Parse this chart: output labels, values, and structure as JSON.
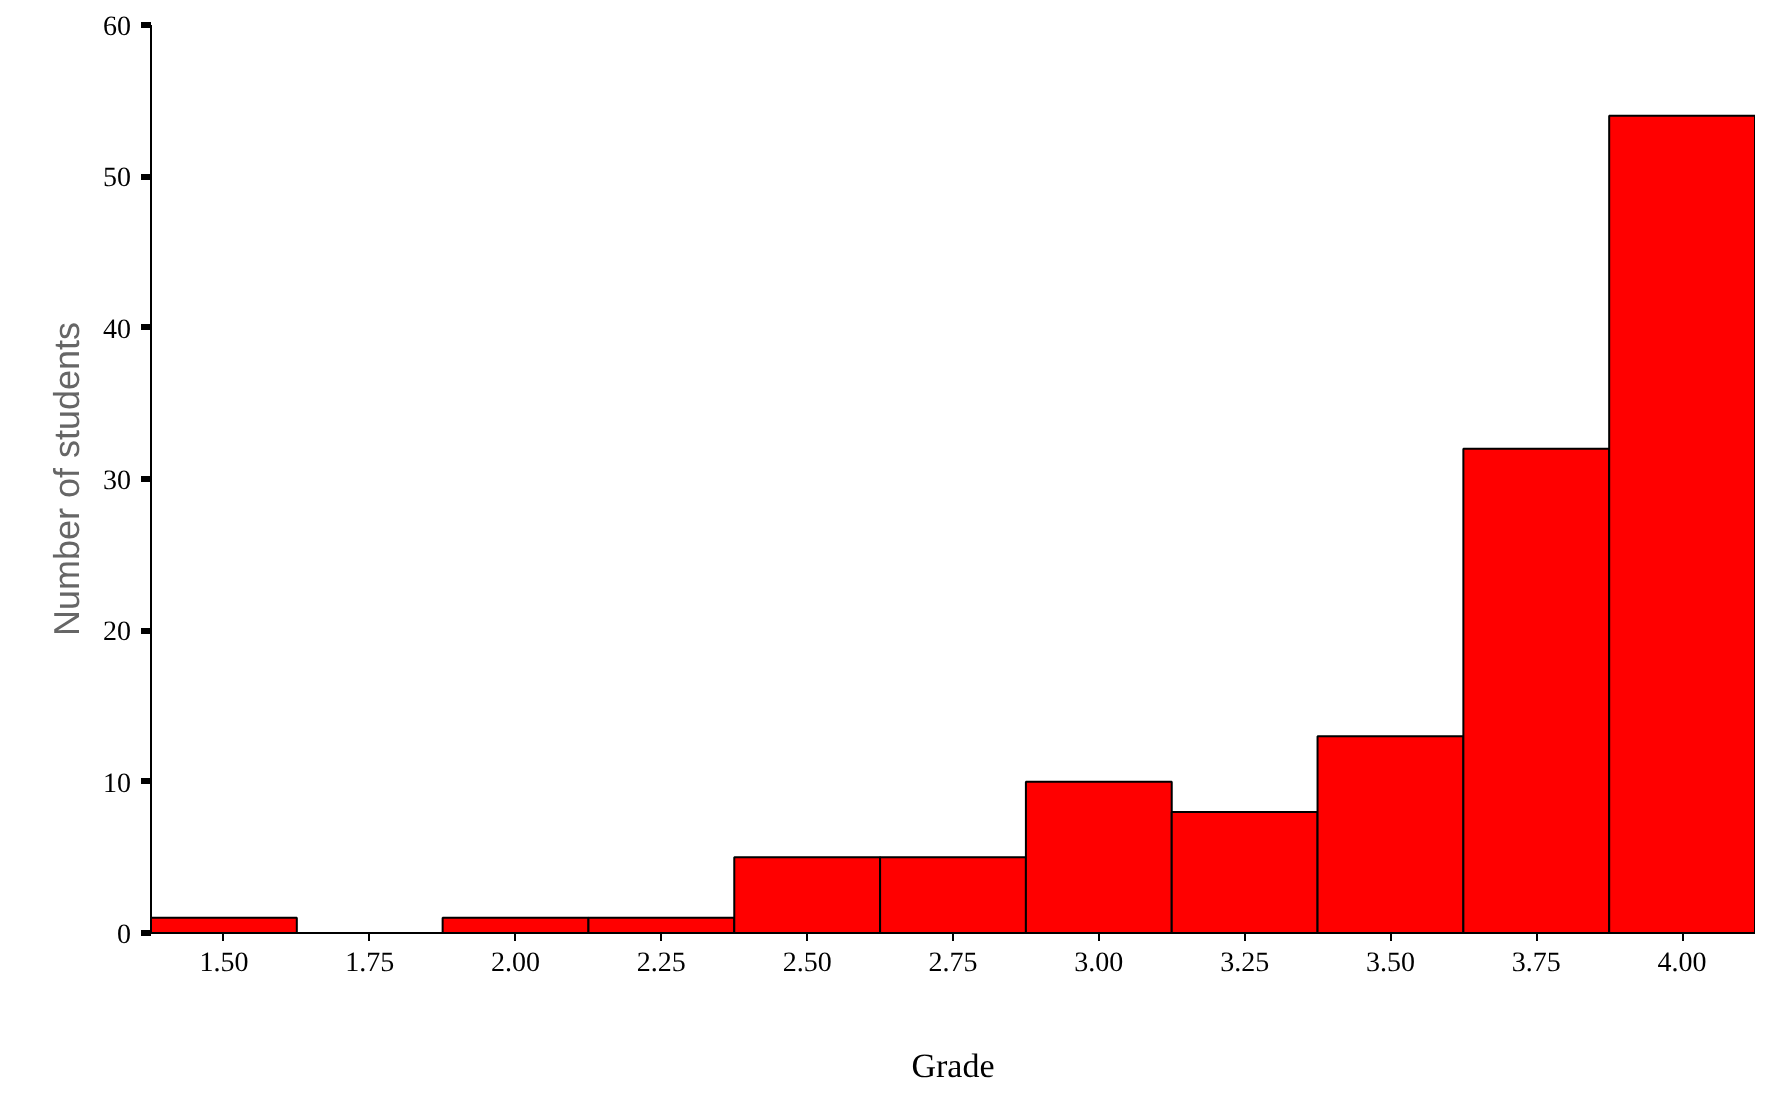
{
  "chart_data": {
    "type": "histogram",
    "xlabel": "Grade",
    "ylabel": "Number of students",
    "bins": [
      1.375,
      1.625,
      1.875,
      2.125,
      2.375,
      2.625,
      2.875,
      3.125,
      3.375,
      3.625,
      3.875,
      4.125
    ],
    "values": [
      1,
      0,
      1,
      1,
      5,
      5,
      10,
      8,
      13,
      32,
      54
    ],
    "color": "#ff0000",
    "xlim": [
      1.375,
      4.125
    ],
    "xticks": [
      {
        "value": 1.5,
        "label": "1.50"
      },
      {
        "value": 1.75,
        "label": "1.75"
      },
      {
        "value": 2.0,
        "label": "2.00"
      },
      {
        "value": 2.25,
        "label": "2.25"
      },
      {
        "value": 2.5,
        "label": "2.50"
      },
      {
        "value": 2.75,
        "label": "2.75"
      },
      {
        "value": 3.0,
        "label": "3.00"
      },
      {
        "value": 3.25,
        "label": "3.25"
      },
      {
        "value": 3.5,
        "label": "3.50"
      },
      {
        "value": 3.75,
        "label": "3.75"
      },
      {
        "value": 4.0,
        "label": "4.00"
      }
    ],
    "ylim": [
      0,
      60
    ],
    "yticks": [
      0,
      10,
      20,
      30,
      40,
      50,
      60
    ],
    "grid": false
  }
}
